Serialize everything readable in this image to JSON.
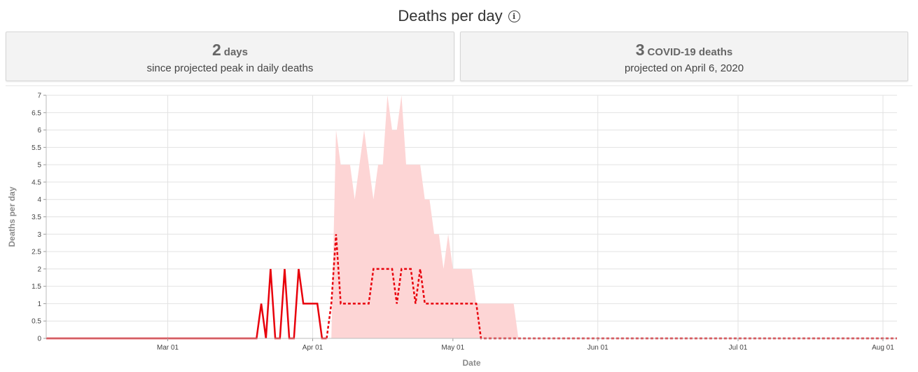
{
  "header": {
    "title": "Deaths per day"
  },
  "cards": [
    {
      "value": "2",
      "unit": "days",
      "caption": "since projected peak in daily deaths"
    },
    {
      "value": "3",
      "unit": "COVID-19 deaths",
      "caption": "projected on April 6, 2020"
    }
  ],
  "colors": {
    "observed": "#e8000b",
    "projected": "#e8000b",
    "uncertainty": "#fdd5d5",
    "grid": "#e2e2e2"
  },
  "chart_data": {
    "type": "line",
    "title": "",
    "xlabel": "Date",
    "ylabel": "Deaths per day",
    "x_start": "2020-02-04",
    "x_end": "2020-08-04",
    "ylim": [
      0,
      7
    ],
    "y_ticks": [
      0,
      0.5,
      1,
      1.5,
      2,
      2.5,
      3,
      3.5,
      4,
      4.5,
      5,
      5.5,
      6,
      6.5,
      7
    ],
    "x_ticks": [
      {
        "date": "2020-03-01",
        "label": "Mar 01"
      },
      {
        "date": "2020-04-01",
        "label": "Apr 01"
      },
      {
        "date": "2020-05-01",
        "label": "May 01"
      },
      {
        "date": "2020-06-01",
        "label": "Jun 01"
      },
      {
        "date": "2020-07-01",
        "label": "Jul 01"
      },
      {
        "date": "2020-08-01",
        "label": "Aug 01"
      }
    ],
    "grid": true,
    "series": [
      {
        "style": "solid",
        "points": [
          [
            "2020-02-04",
            0
          ],
          [
            "2020-03-20",
            0
          ],
          [
            "2020-03-21",
            1
          ],
          [
            "2020-03-22",
            0
          ],
          [
            "2020-03-23",
            2
          ],
          [
            "2020-03-24",
            0
          ],
          [
            "2020-03-25",
            0
          ],
          [
            "2020-03-26",
            2
          ],
          [
            "2020-03-27",
            0
          ],
          [
            "2020-03-28",
            0
          ],
          [
            "2020-03-29",
            2
          ],
          [
            "2020-03-30",
            1
          ],
          [
            "2020-04-01",
            1
          ],
          [
            "2020-04-02",
            1
          ],
          [
            "2020-04-03",
            0
          ],
          [
            "2020-04-04",
            0
          ]
        ]
      },
      {
        "style": "dashed",
        "points": [
          [
            "2020-04-04",
            0
          ],
          [
            "2020-04-05",
            1
          ],
          [
            "2020-04-06",
            3
          ],
          [
            "2020-04-07",
            1
          ],
          [
            "2020-04-13",
            1
          ],
          [
            "2020-04-14",
            2
          ],
          [
            "2020-04-18",
            2
          ],
          [
            "2020-04-19",
            1
          ],
          [
            "2020-04-20",
            2
          ],
          [
            "2020-04-22",
            2
          ],
          [
            "2020-04-23",
            1
          ],
          [
            "2020-04-24",
            2
          ],
          [
            "2020-04-25",
            1
          ],
          [
            "2020-05-06",
            1
          ],
          [
            "2020-05-07",
            0
          ],
          [
            "2020-08-04",
            0
          ]
        ]
      }
    ],
    "uncertainty_upper": [
      [
        "2020-04-05",
        0
      ],
      [
        "2020-04-06",
        6
      ],
      [
        "2020-04-07",
        5
      ],
      [
        "2020-04-09",
        5
      ],
      [
        "2020-04-10",
        4
      ],
      [
        "2020-04-12",
        6
      ],
      [
        "2020-04-14",
        4
      ],
      [
        "2020-04-15",
        5
      ],
      [
        "2020-04-16",
        5
      ],
      [
        "2020-04-17",
        7
      ],
      [
        "2020-04-18",
        6
      ],
      [
        "2020-04-19",
        6
      ],
      [
        "2020-04-20",
        7
      ],
      [
        "2020-04-21",
        5
      ],
      [
        "2020-04-24",
        5
      ],
      [
        "2020-04-25",
        4
      ],
      [
        "2020-04-26",
        4
      ],
      [
        "2020-04-27",
        3
      ],
      [
        "2020-04-28",
        3
      ],
      [
        "2020-04-29",
        2
      ],
      [
        "2020-04-30",
        3
      ],
      [
        "2020-05-01",
        2
      ],
      [
        "2020-05-05",
        2
      ],
      [
        "2020-05-06",
        1
      ],
      [
        "2020-05-14",
        1
      ],
      [
        "2020-05-15",
        0
      ]
    ],
    "uncertainty_lower": [
      [
        "2020-04-05",
        0
      ],
      [
        "2020-05-15",
        0
      ]
    ]
  }
}
